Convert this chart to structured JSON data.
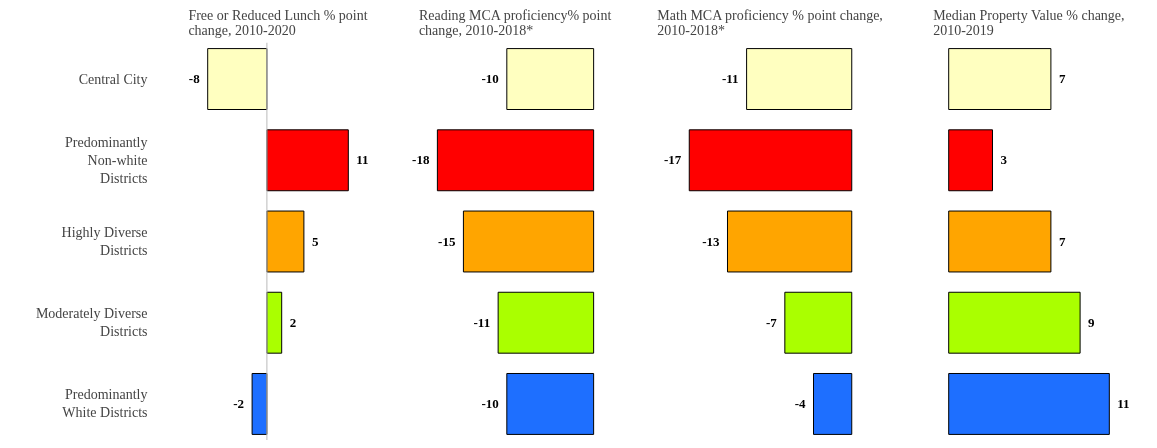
{
  "chart_data": [
    {
      "type": "bar",
      "orientation": "horizontal",
      "title": "Free or Reduced Lunch % point change, 2010-2020",
      "categories": [
        "Central City",
        "Predominantly Non-white Districts",
        "Highly Diverse Districts",
        "Moderately Diverse Districts",
        "Predominantly White Districts"
      ],
      "values": [
        -8,
        11,
        5,
        2,
        -2
      ],
      "colors": [
        "#ffffc0",
        "#ff0000",
        "#ffa500",
        "#aaff00",
        "#1e6fff"
      ],
      "data_labels": true,
      "tick_labels": "y"
    },
    {
      "type": "bar",
      "orientation": "horizontal",
      "title": "Reading MCA proficiency% point change, 2010-2018*",
      "categories": [
        null,
        null,
        null,
        null,
        null
      ],
      "values": [
        -10,
        -18,
        -15,
        -11,
        -10
      ],
      "colors": [
        "#ffffc0",
        "#ff0000",
        "#ffa500",
        "#aaff00",
        "#1e6fff"
      ],
      "data_labels": true,
      "tick_labels": false
    },
    {
      "type": "bar",
      "orientation": "horizontal",
      "title": "Math MCA proficiency % point change, 2010-2018*",
      "categories": [
        null,
        null,
        null,
        null,
        null
      ],
      "values": [
        -11,
        -17,
        -13,
        -7,
        -4
      ],
      "colors": [
        "#ffffc0",
        "#ff0000",
        "#ffa500",
        "#aaff00",
        "#1e6fff"
      ],
      "data_labels": true,
      "tick_labels": false
    },
    {
      "type": "bar",
      "orientation": "horizontal",
      "title": "Median Property Value % change, 2010-2019",
      "categories": [
        null,
        null,
        null,
        null,
        null
      ],
      "values": [
        7,
        3,
        7,
        9,
        11
      ],
      "colors": [
        "#ffffc0",
        "#ff0000",
        "#ffa500",
        "#aaff00",
        "#1e6fff"
      ],
      "data_labels": true,
      "tick_labels": false
    }
  ]
}
